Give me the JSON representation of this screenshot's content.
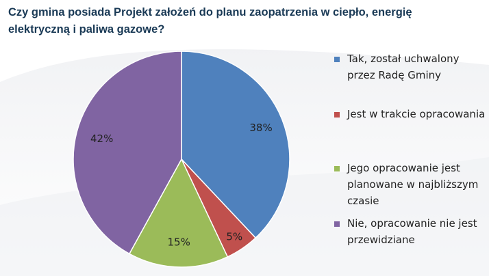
{
  "title": "Czy gmina posiada Projekt założeń do planu zaopatrzenia w ciepło, energię elektryczną i paliwa gazowe?",
  "chart_data": {
    "type": "pie",
    "title": "Czy gmina posiada Projekt założeń do planu zaopatrzenia w ciepło, energię elektryczną i paliwa gazowe?",
    "legend_position": "right",
    "slices": [
      {
        "label": "Tak, został uchwalony przez Radę Gminy",
        "value": 38,
        "value_label": "38%",
        "color": "#4f81bd"
      },
      {
        "label": "Jest w trakcie opracowania",
        "value": 5,
        "value_label": "5%",
        "color": "#c0504d"
      },
      {
        "label": "Jego opracowanie jest planowane w najbliższym czasie",
        "value": 15,
        "value_label": "15%",
        "color": "#9bbb59"
      },
      {
        "label": "Nie, opracowanie nie jest przewidziane",
        "value": 42,
        "value_label": "42%",
        "color": "#8064a2"
      }
    ]
  }
}
